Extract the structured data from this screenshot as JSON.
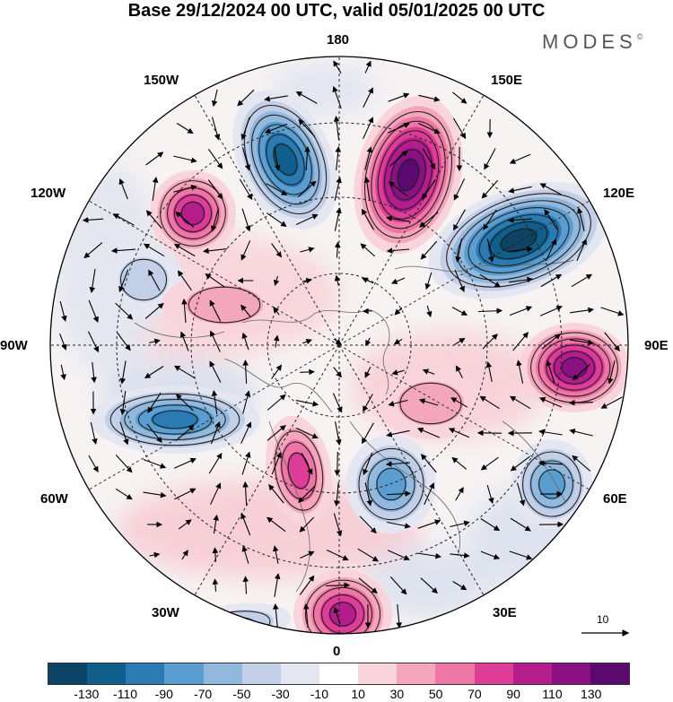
{
  "title": "Base 29/12/2024 00 UTC, valid 05/01/2025 00 UTC",
  "logo": {
    "text": "MODES",
    "mark": "©"
  },
  "longitude_labels": {
    "top": "180",
    "bottom": "0",
    "left": "90W",
    "right": "90E",
    "upper_left": "150W",
    "upper_left_2": "120W",
    "lower_left": "60W",
    "lower_left_2": "30W",
    "upper_right": "150E",
    "upper_right_2": "120E",
    "lower_right": "60E",
    "lower_right_2": "30E"
  },
  "reference_vector": {
    "value": "10"
  },
  "colorbar": {
    "tick_labels": [
      "-130",
      "-110",
      "-90",
      "-70",
      "-50",
      "-30",
      "-10",
      "10",
      "30",
      "50",
      "70",
      "90",
      "110",
      "130"
    ],
    "colors": [
      "#0d4466",
      "#105e8c",
      "#2a7bb4",
      "#5a9dd0",
      "#92b8dd",
      "#c2cfe6",
      "#e4e6f2",
      "#ffffff",
      "#fad4dc",
      "#f4a7bc",
      "#ee76a4",
      "#dd3d96",
      "#b51d8d",
      "#8a1182",
      "#5a0a6e"
    ]
  },
  "anomaly_centers": [
    {
      "sign": "negative",
      "level": -110
    },
    {
      "sign": "positive",
      "level": 130
    },
    {
      "sign": "positive",
      "level": 90
    },
    {
      "sign": "negative",
      "level": -130
    },
    {
      "sign": "positive",
      "level": 110
    },
    {
      "sign": "negative",
      "level": -70
    },
    {
      "sign": "negative",
      "level": -90
    },
    {
      "sign": "positive",
      "level": 70
    },
    {
      "sign": "negative",
      "level": -70
    },
    {
      "sign": "positive",
      "level": 90
    },
    {
      "sign": "negative",
      "level": -50
    },
    {
      "sign": "negative",
      "level": -30
    },
    {
      "sign": "positive",
      "level": 30
    },
    {
      "sign": "positive",
      "level": 30
    }
  ]
}
